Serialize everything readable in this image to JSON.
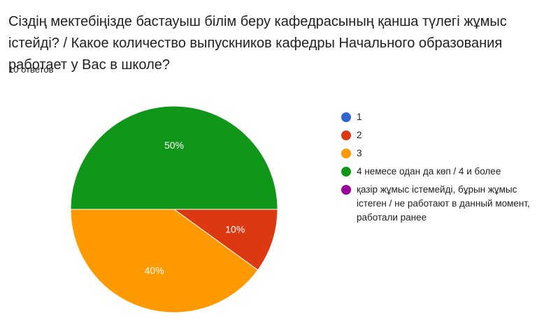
{
  "question": {
    "title": "Сіздің мектебіңізде бастауыш білім беру кафедрасының қанша түлегі жұмыс істейді? / Какое количество выпускников кафедры Начального образования работает у Вас в школе?",
    "response_count": "10 ответов"
  },
  "chart_data": {
    "type": "pie",
    "categories": [
      "1",
      "2",
      "3",
      "4 немесе одан да көп / 4 и более",
      "қазір жұмыс істемейді, бұрын жұмыс істеген / не работают в данный момент, работали ранее"
    ],
    "values": [
      0,
      10,
      40,
      50,
      0
    ],
    "value_labels": [
      "",
      "10%",
      "40%",
      "50%",
      ""
    ],
    "colors": [
      "#3366cc",
      "#dc3912",
      "#ff9900",
      "#109618",
      "#990099"
    ],
    "legend_position": "right"
  }
}
